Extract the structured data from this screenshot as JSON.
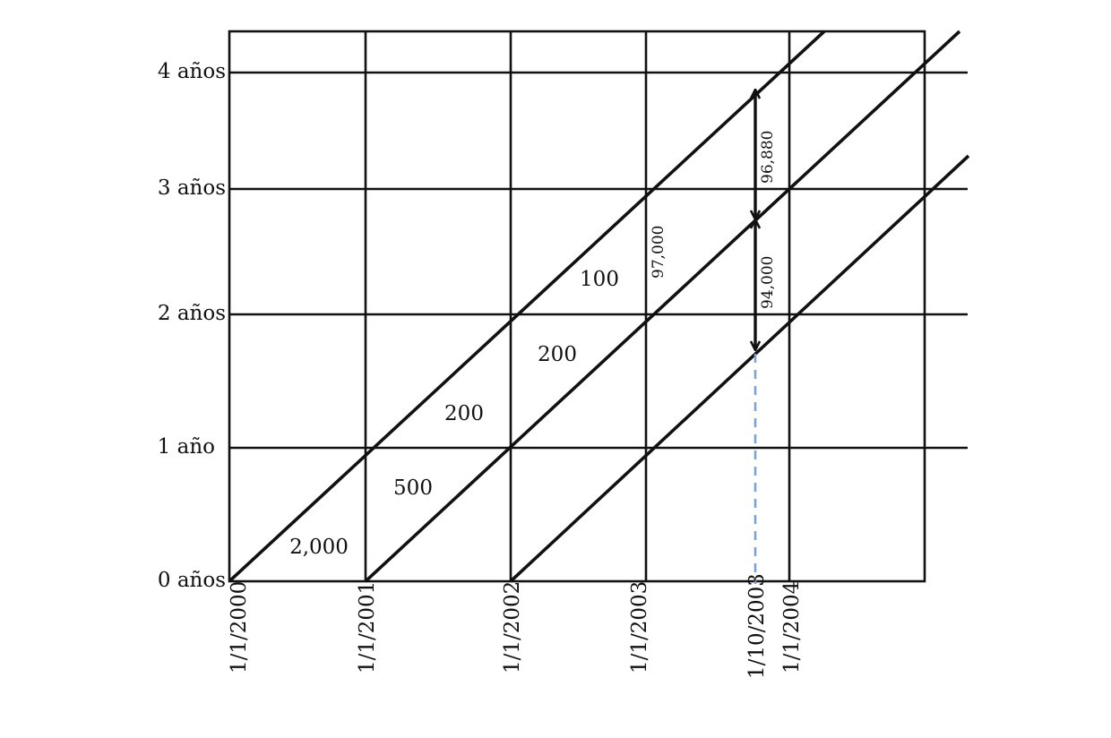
{
  "y_axis": {
    "labels": [
      "0 años",
      "1 año",
      "2 años",
      "3 años",
      "4 años"
    ]
  },
  "x_axis": {
    "labels": [
      "1/1/2000",
      "1/1/2001",
      "1/1/2002",
      "1/1/2003",
      "1/10/2003",
      "1/1/2004"
    ]
  },
  "cell_values": {
    "v1": "2,000",
    "v2": "500",
    "v3": "200",
    "v4": "200",
    "v5": "100"
  },
  "flows": {
    "upper": "96,880",
    "lower": "94,000",
    "side": "97,000"
  },
  "colors": {
    "line": "#111111",
    "dashed_marker": "#7ba3d6"
  }
}
